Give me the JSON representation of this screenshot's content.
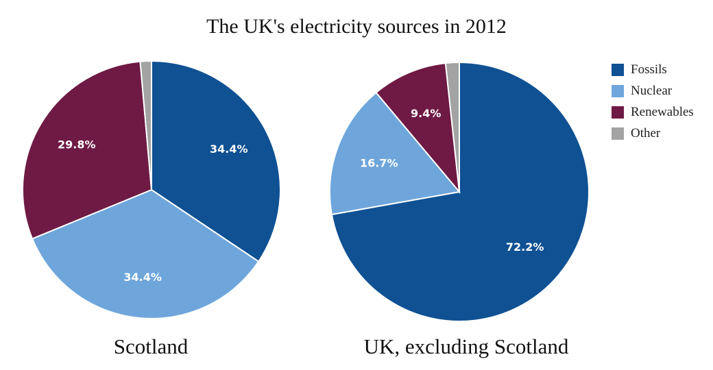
{
  "chart_data": [
    {
      "type": "pie",
      "title": "The UK's electricity sources in 2012",
      "caption": "Scotland",
      "categories": [
        "Fossils",
        "Nuclear",
        "Renewables",
        "Other"
      ],
      "values": [
        34.4,
        34.4,
        29.8,
        1.4
      ],
      "labels": [
        "34.4%",
        "34.4%",
        "29.8%",
        ""
      ],
      "colors": [
        "#0f5193",
        "#6ea6dc",
        "#6e1a44",
        "#a3a3a3"
      ],
      "legend": "right"
    },
    {
      "type": "pie",
      "caption": "UK, excluding Scotland",
      "categories": [
        "Fossils",
        "Nuclear",
        "Renewables",
        "Other"
      ],
      "values": [
        72.2,
        16.7,
        9.4,
        1.7
      ],
      "labels": [
        "72.2%",
        "16.7%",
        "9.4%",
        ""
      ],
      "colors": [
        "#0f5193",
        "#6ea6dc",
        "#6e1a44",
        "#a3a3a3"
      ],
      "legend": "right"
    }
  ],
  "legend": {
    "items": [
      {
        "label": "Fossils",
        "color": "#0f5193"
      },
      {
        "label": "Nuclear",
        "color": "#6ea6dc"
      },
      {
        "label": "Renewables",
        "color": "#6e1a44"
      },
      {
        "label": "Other",
        "color": "#a3a3a3"
      }
    ]
  }
}
